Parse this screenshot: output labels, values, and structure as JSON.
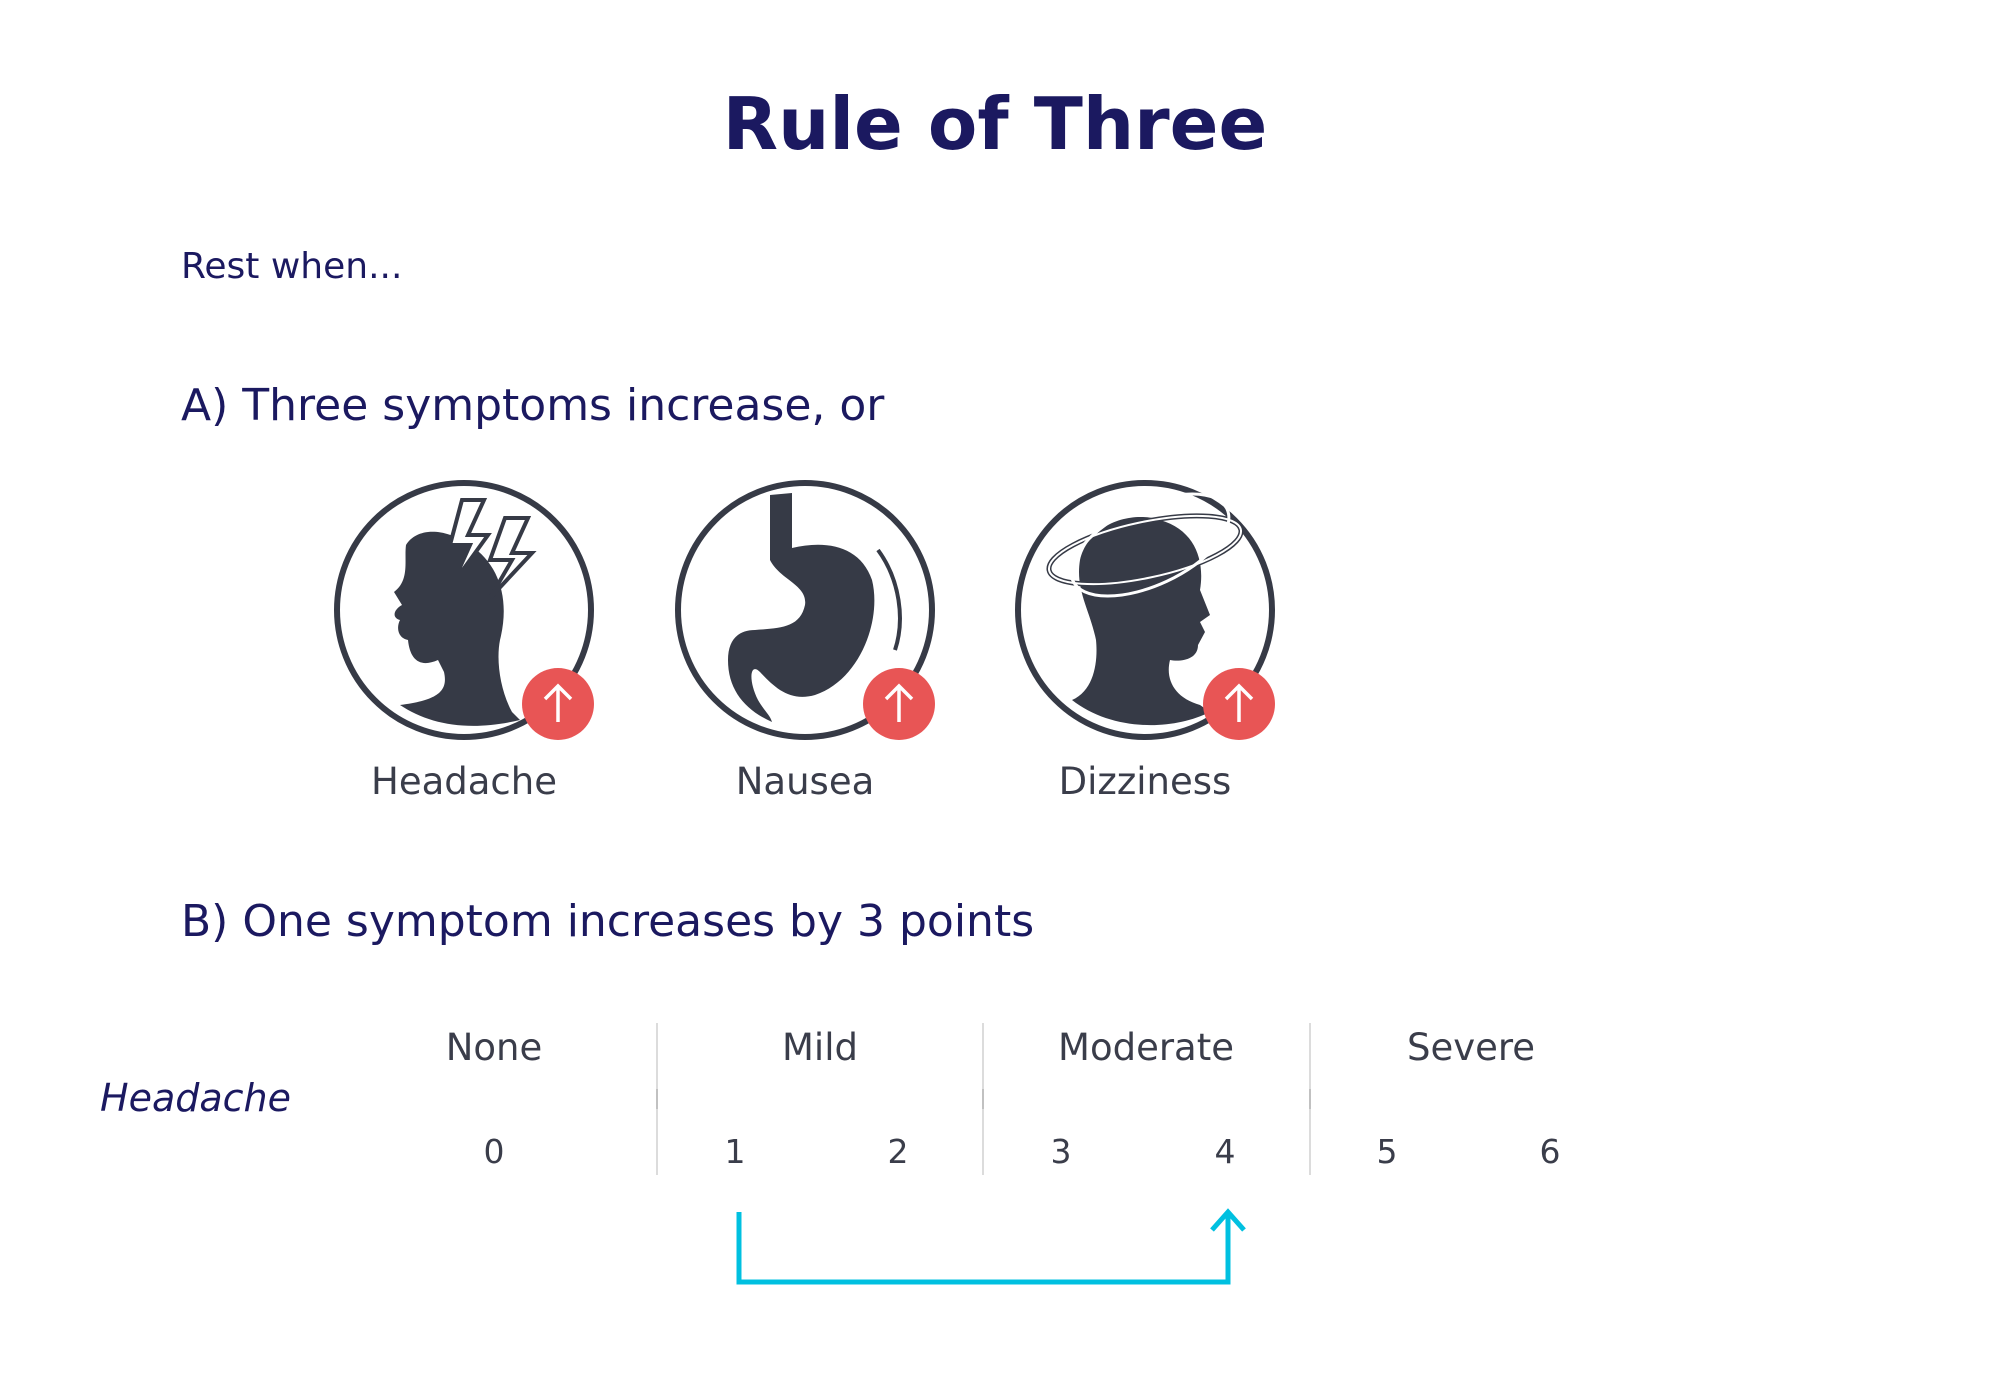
{
  "title": "Rule of Three",
  "intro": "Rest when...",
  "section_a": {
    "heading": "A) Three symptoms increase, or",
    "symptoms": [
      {
        "label": "Headache",
        "icon": "head-lightning-icon",
        "badge": "arrow-up-icon"
      },
      {
        "label": "Nausea",
        "icon": "stomach-icon",
        "badge": "arrow-up-icon"
      },
      {
        "label": "Dizziness",
        "icon": "head-spinning-icon",
        "badge": "arrow-up-icon"
      }
    ]
  },
  "section_b": {
    "heading": "B) One symptom increases by 3 points",
    "scale": {
      "row_label": "Headache",
      "categories": [
        "None",
        "Mild",
        "Moderate",
        "Severe"
      ],
      "ticks": [
        "0",
        "1",
        "2",
        "3",
        "4",
        "5",
        "6"
      ],
      "from": 1,
      "to": 4
    }
  },
  "colors": {
    "title": "#1b1960",
    "icon": "#363a46",
    "badge": "#e85555",
    "gradient_start": "#00bfe0",
    "gradient_end": "#ffa11c",
    "bracket": "#00c0e0"
  }
}
